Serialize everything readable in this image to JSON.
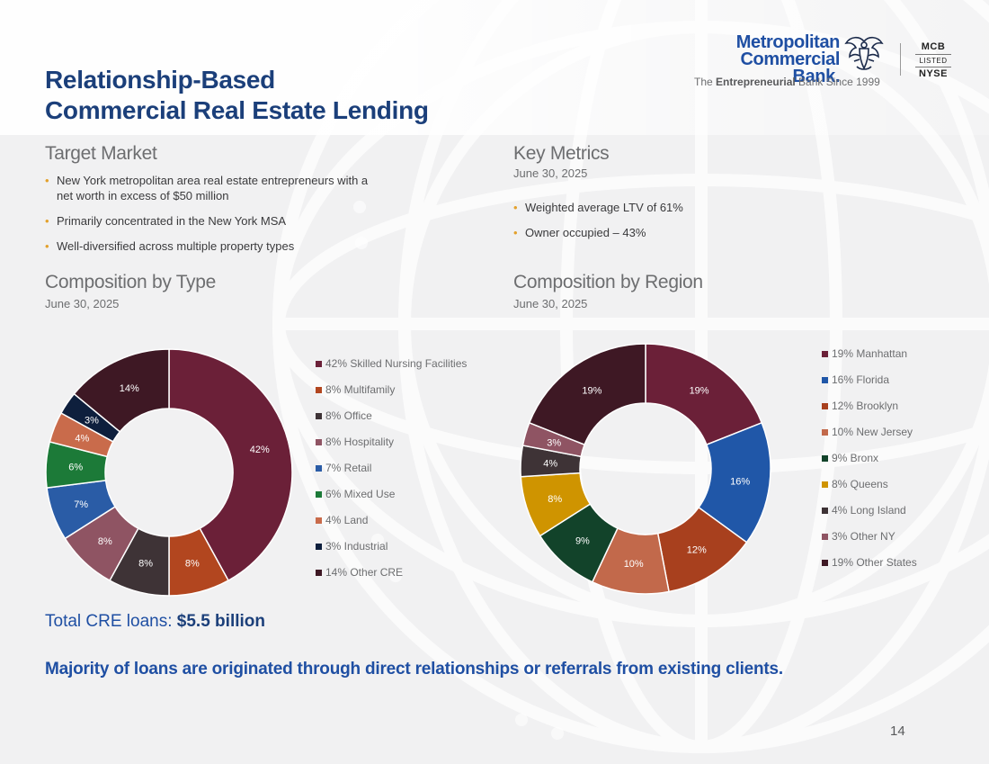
{
  "title_lines": [
    "Relationship-Based",
    "Commercial Real Estate Lending"
  ],
  "logo": {
    "name_lines": [
      "Metropolitan",
      "Commercial Bank."
    ],
    "tagline_prefix": "The ",
    "tagline_bold": "Entrepreneurial",
    "tagline_suffix": " Bank Since 1999",
    "ticker_top": "MCB",
    "ticker_mid": "LISTED",
    "ticker_bottom": "NYSE",
    "icon": "eagle-icon"
  },
  "target_market": {
    "title": "Target Market",
    "bullets": [
      "New York metropolitan area real estate entrepreneurs with a net worth in excess of $50 million",
      "Primarily concentrated in the New York MSA",
      "Well-diversified across multiple property types"
    ]
  },
  "key_metrics": {
    "title": "Key Metrics",
    "date": "June 30, 2025",
    "bullets": [
      "Weighted average LTV of 61%",
      "Owner occupied – 43%"
    ]
  },
  "colors": {
    "accent_bullet": "#e3a12c",
    "title_blue": "#1b3f7a",
    "brand_blue": "#1f4fa3"
  },
  "chart_data": [
    {
      "type": "pie",
      "title": "Composition by Type",
      "subtitle": "June 30, 2025",
      "categories": [
        "Skilled Nursing Facilities",
        "Multifamily",
        "Office",
        "Hospitality",
        "Retail",
        "Mixed Use",
        "Land",
        "Industrial",
        "Other CRE"
      ],
      "values": [
        42,
        8,
        8,
        8,
        7,
        6,
        4,
        3,
        14
      ],
      "labels": [
        "42%",
        "8%",
        "8%",
        "8%",
        "7%",
        "6%",
        "4%",
        "3%",
        "14%"
      ],
      "legend": [
        "42% Skilled Nursing Facilities",
        "8% Multifamily",
        "8% Office",
        "8% Hospitality",
        "7% Retail",
        "6% Mixed Use",
        "4% Land",
        "3% Industrial",
        "14% Other CRE"
      ],
      "colors": [
        "#6b2038",
        "#b2461f",
        "#3e3336",
        "#8f5463",
        "#2a5ca6",
        "#1c7a38",
        "#c96b4b",
        "#0e1f3d",
        "#3e1824"
      ],
      "donut": true,
      "legend_position": "right"
    },
    {
      "type": "pie",
      "title": "Composition by Region",
      "subtitle": "June 30, 2025",
      "categories": [
        "Manhattan",
        "Florida",
        "Brooklyn",
        "New Jersey",
        "Bronx",
        "Queens",
        "Long Island",
        "Other NY",
        "Other States"
      ],
      "values": [
        19,
        16,
        12,
        10,
        9,
        8,
        4,
        3,
        19
      ],
      "labels": [
        "19%",
        "16%",
        "12%",
        "10%",
        "9%",
        "8%",
        "4%",
        "3%",
        "19%"
      ],
      "legend": [
        "19% Manhattan",
        "16% Florida",
        "12% Brooklyn",
        "10% New Jersey",
        "9% Bronx",
        "8% Queens",
        "4% Long Island",
        "3% Other NY",
        "19% Other States"
      ],
      "colors": [
        "#6b2038",
        "#2057a8",
        "#a8401e",
        "#c2694b",
        "#12432a",
        "#cf9400",
        "#3e3336",
        "#8f5463",
        "#3e1824"
      ],
      "donut": true,
      "legend_position": "right"
    }
  ],
  "total": {
    "prefix": "Total CRE loans: ",
    "value": "$5.5 billion"
  },
  "footnote": "Majority of loans are originated through direct relationships or referrals from existing clients.",
  "page_number": "14"
}
